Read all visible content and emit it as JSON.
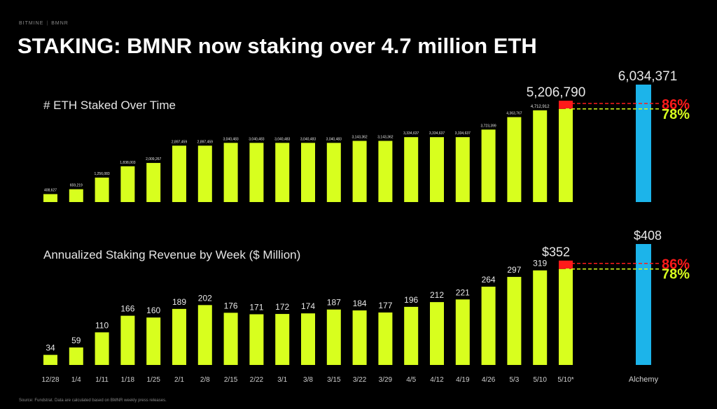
{
  "header": {
    "brand": "BITMINE",
    "brand_sub": "BMNR",
    "title": "STAKING: BMNR now staking over 4.7 million ETH"
  },
  "footer": {
    "source": "Source: Fundstrat. Data are calculated based on BMNR weekly press releases."
  },
  "colors": {
    "bar": "#d8ff1e",
    "alchemy": "#1cb4ea",
    "projection": "#ff1a1a",
    "grid_line": "#d8ff1e"
  },
  "chart_data": [
    {
      "type": "bar",
      "title": "# ETH Staked Over Time",
      "categories": [
        "12/28",
        "1/4",
        "1/11",
        "1/18",
        "1/25",
        "2/1",
        "2/8",
        "2/15",
        "2/22",
        "3/1",
        "3/8",
        "3/15",
        "3/22",
        "3/29",
        "4/5",
        "4/12",
        "4/19",
        "4/26",
        "5/3",
        "5/10",
        "5/10*",
        "Alchemy"
      ],
      "values": [
        408627,
        659219,
        1256083,
        1838003,
        2009267,
        2897459,
        2897459,
        3040483,
        3040483,
        3040483,
        3040483,
        3040483,
        3143362,
        3143362,
        3334637,
        3334637,
        3334637,
        3723399,
        4363767,
        4712912,
        5206790,
        6034371
      ],
      "value_labels": [
        "408,627",
        "659,219",
        "1,256,083",
        "1,838,003",
        "2,009,267",
        "2,897,459",
        "2,897,459",
        "3,040,483",
        "3,040,483",
        "3,040,483",
        "3,040,483",
        "3,040,483",
        "3,143,362",
        "3,143,362",
        "3,334,637",
        "3,334,637",
        "3,334,637",
        "3,723,399",
        "4,363,767",
        "4,712,912",
        "5,206,790",
        "6,034,371"
      ],
      "ylim": [
        0,
        6034371
      ],
      "annotations": [
        {
          "text": "86%",
          "color": "#ff1a1a"
        },
        {
          "text": "78%",
          "color": "#d8ff1e"
        }
      ],
      "grid": false
    },
    {
      "type": "bar",
      "title": "Annualized Staking Revenue by Week ($ Million)",
      "categories": [
        "12/28",
        "1/4",
        "1/11",
        "1/18",
        "1/25",
        "2/1",
        "2/8",
        "2/15",
        "2/22",
        "3/1",
        "3/8",
        "3/15",
        "3/22",
        "3/29",
        "4/5",
        "4/12",
        "4/19",
        "4/26",
        "5/3",
        "5/10",
        "5/10*",
        "Alchemy"
      ],
      "values": [
        34,
        59,
        110,
        166,
        160,
        189,
        202,
        176,
        171,
        172,
        174,
        187,
        184,
        177,
        196,
        212,
        221,
        264,
        297,
        319,
        352,
        408
      ],
      "value_labels": [
        "34",
        "59",
        "110",
        "166",
        "160",
        "189",
        "202",
        "176",
        "171",
        "172",
        "174",
        "187",
        "184",
        "177",
        "196",
        "212",
        "221",
        "264",
        "297",
        "319",
        "$352",
        "$408"
      ],
      "ylim": [
        0,
        408
      ],
      "annotations": [
        {
          "text": "86%",
          "color": "#ff1a1a"
        },
        {
          "text": "78%",
          "color": "#d8ff1e"
        }
      ],
      "grid": false
    }
  ]
}
